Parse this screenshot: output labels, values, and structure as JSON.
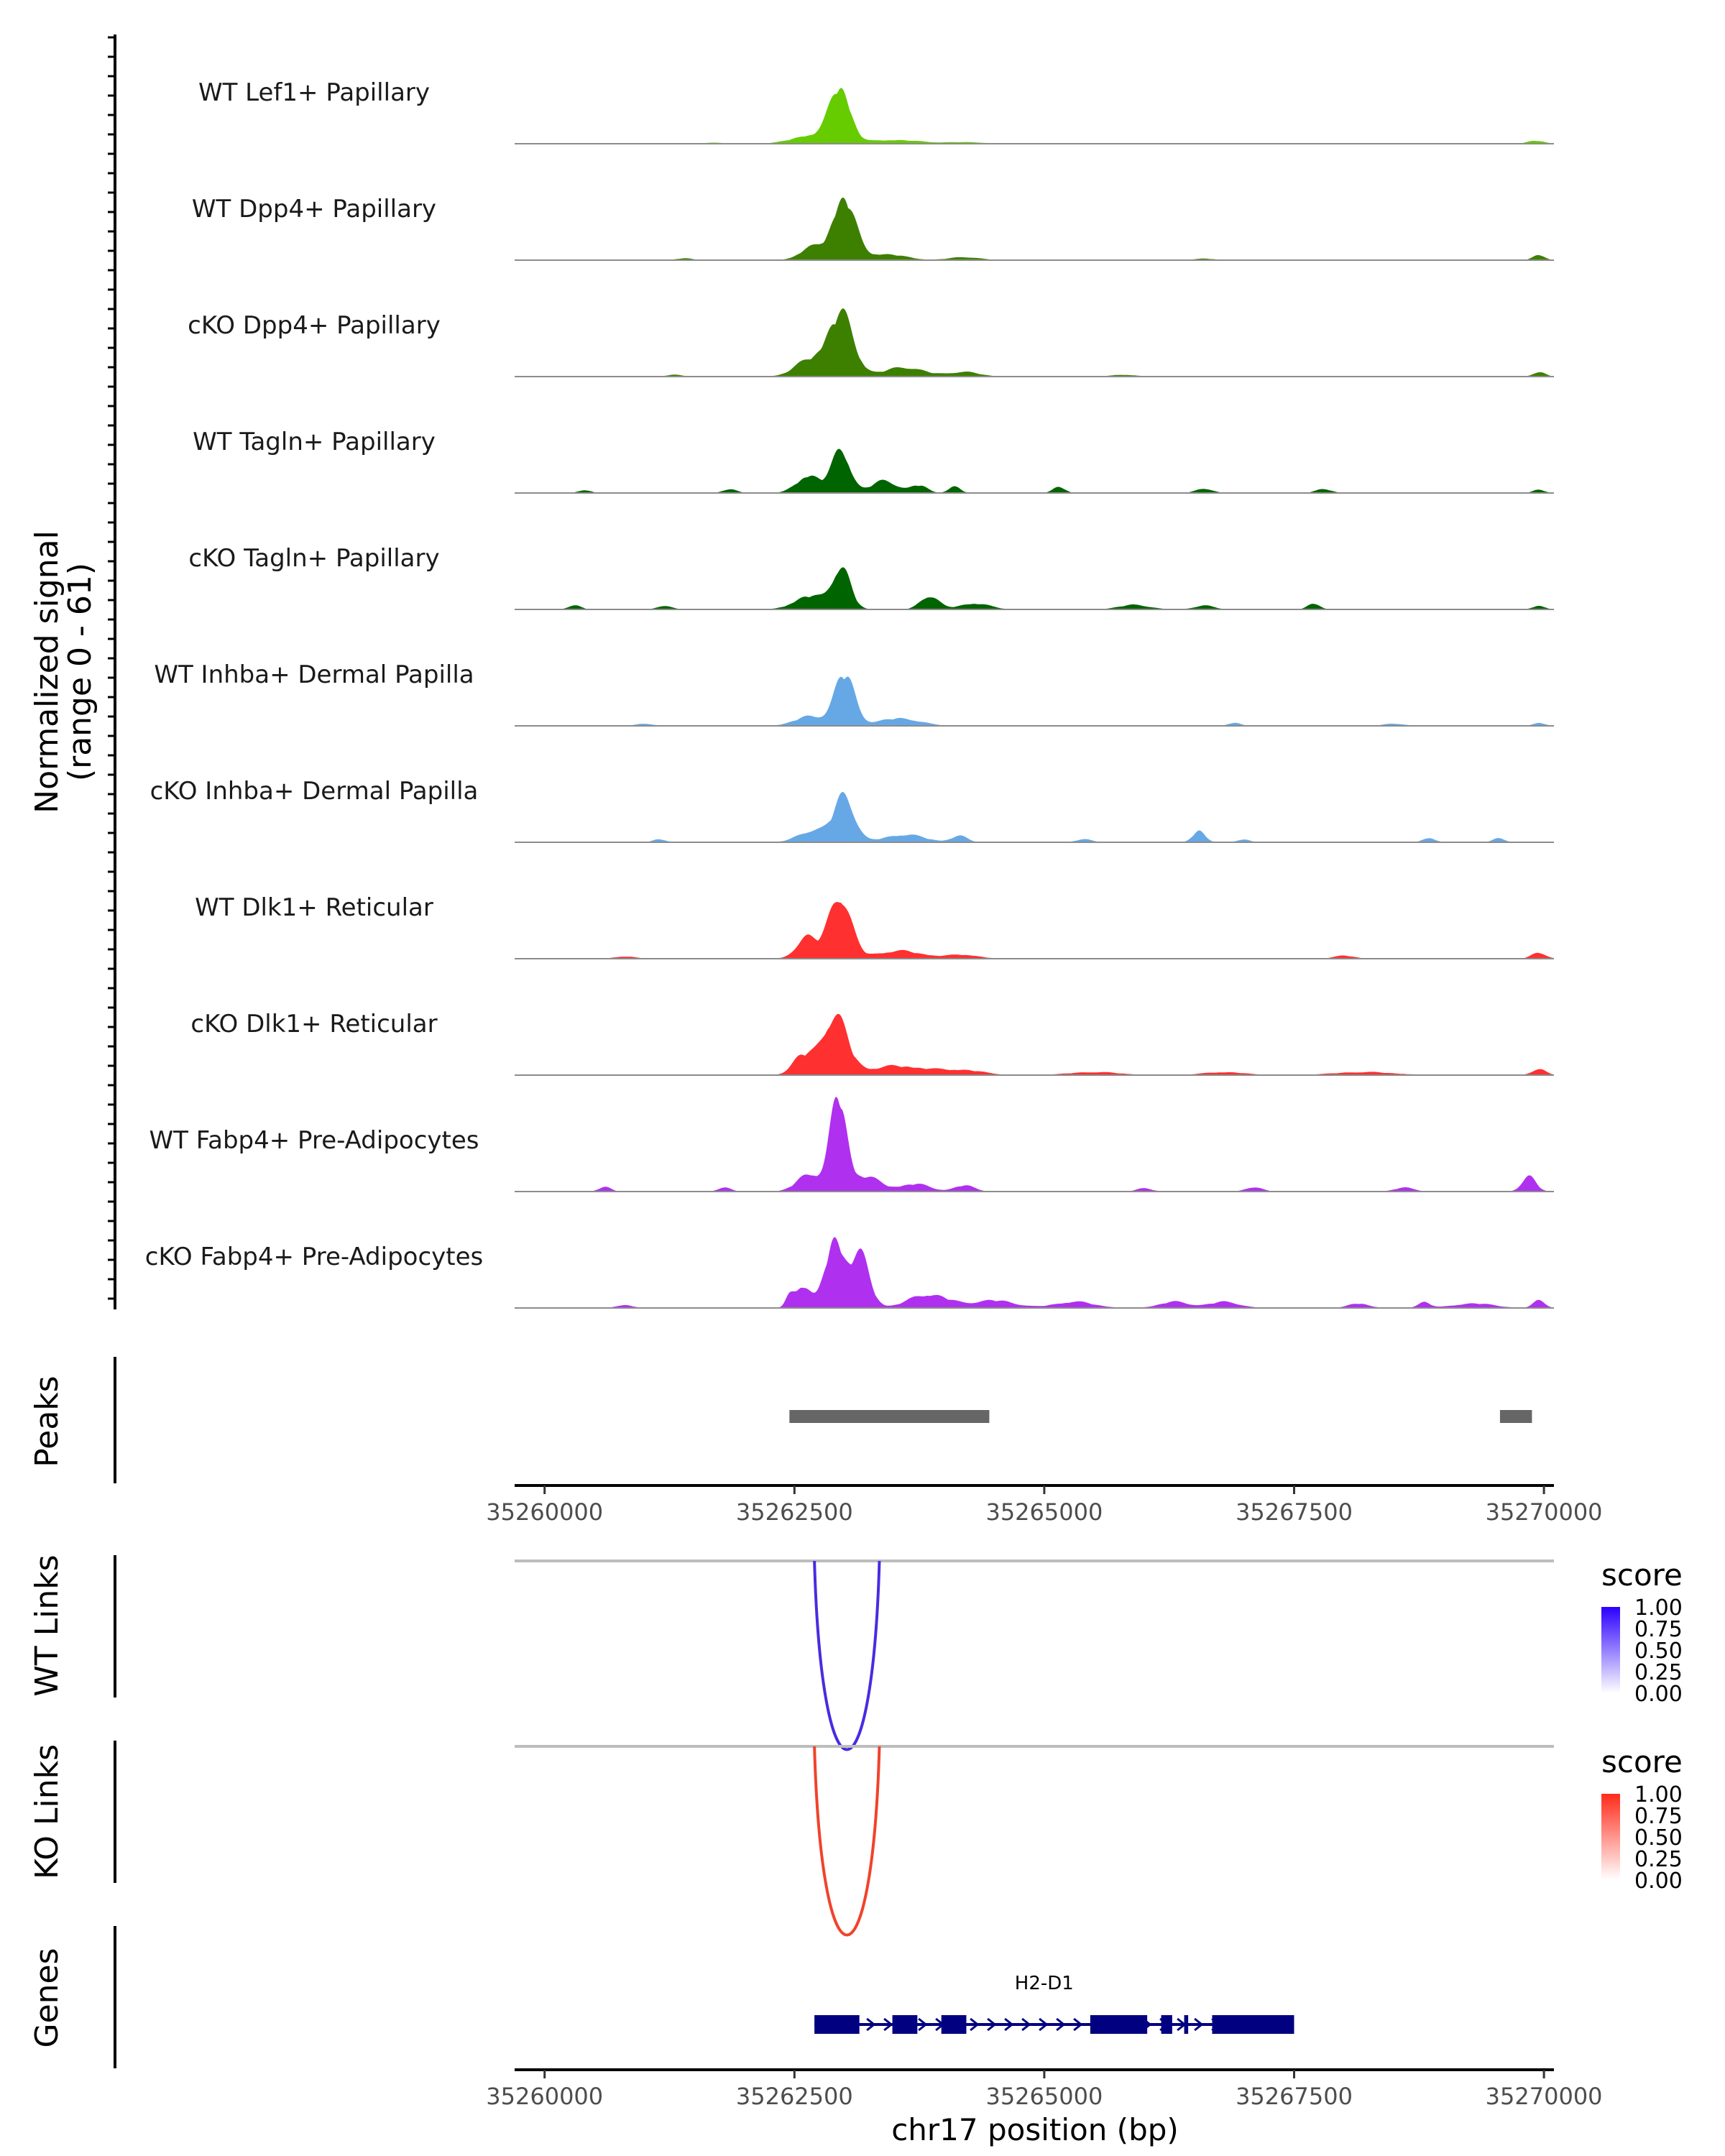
{
  "chart_data": {
    "type": "area",
    "chrom": "chr17",
    "xlim": [
      35259700,
      35270100
    ],
    "xticks": [
      35260000,
      35262500,
      35265000,
      35267500,
      35270000
    ],
    "xlabel": "chr17 position (bp)",
    "coverage": {
      "ylabel_line1": "Normalized signal",
      "ylabel_line2": "(range 0 - 61)",
      "ylim": [
        0,
        61
      ],
      "tracks": [
        {
          "name": "WT Lef1+ Papillary",
          "color": "#66CC00",
          "peaks": [
            [
              35262960,
              36,
              100
            ],
            [
              35262700,
              6,
              200
            ],
            [
              35263500,
              2.5,
              250
            ],
            [
              35264200,
              1.0,
              200
            ],
            [
              35269920,
              2.0,
              80
            ],
            [
              35261700,
              0.8,
              80
            ]
          ]
        },
        {
          "name": "WT Dpp4+ Papillary",
          "color": "#3D8000",
          "peaks": [
            [
              35262990,
              42,
              110
            ],
            [
              35262670,
              8,
              120
            ],
            [
              35263400,
              4,
              200
            ],
            [
              35264200,
              2,
              150
            ],
            [
              35261400,
              1.2,
              80
            ],
            [
              35269950,
              3.5,
              60
            ],
            [
              35266600,
              1,
              100
            ]
          ]
        },
        {
          "name": "cKO Dpp4+ Papillary",
          "color": "#3D8000",
          "peaks": [
            [
              35262960,
              40,
              130
            ],
            [
              35262650,
              10,
              150
            ],
            [
              35263600,
              6,
              200
            ],
            [
              35264200,
              3,
              150
            ],
            [
              35261300,
              1.2,
              80
            ],
            [
              35265800,
              1.2,
              120
            ],
            [
              35269950,
              3,
              60
            ]
          ]
        },
        {
          "name": "WT Tagln+ Papillary",
          "color": "#006400",
          "peaks": [
            [
              35262970,
              28,
              90
            ],
            [
              35262650,
              12,
              120
            ],
            [
              35263400,
              8,
              130
            ],
            [
              35263750,
              5,
              80
            ],
            [
              35264100,
              4,
              60
            ],
            [
              35265150,
              4,
              60
            ],
            [
              35261850,
              2.5,
              70
            ],
            [
              35260400,
              2,
              60
            ],
            [
              35266600,
              3,
              80
            ],
            [
              35267800,
              2.5,
              80
            ],
            [
              35269950,
              2,
              60
            ]
          ]
        },
        {
          "name": "cKO Tagln+ Papillary",
          "color": "#006400",
          "peaks": [
            [
              35262970,
              28,
              90
            ],
            [
              35262650,
              9,
              150
            ],
            [
              35263850,
              9,
              90
            ],
            [
              35264300,
              4,
              150
            ],
            [
              35265900,
              3,
              150
            ],
            [
              35266600,
              2.5,
              100
            ],
            [
              35261200,
              2.5,
              70
            ],
            [
              35260300,
              3,
              60
            ],
            [
              35267700,
              4,
              60
            ],
            [
              35269950,
              2.5,
              60
            ]
          ]
        },
        {
          "name": "WT Inhba+ Dermal Papilla",
          "color": "#66A8E6",
          "peaks": [
            [
              35263000,
              34,
              100
            ],
            [
              35262650,
              6,
              150
            ],
            [
              35263550,
              5,
              200
            ],
            [
              35266900,
              2,
              60
            ],
            [
              35261000,
              1.5,
              80
            ],
            [
              35268500,
              1.5,
              100
            ],
            [
              35269950,
              2,
              60
            ]
          ]
        },
        {
          "name": "cKO Inhba+ Dermal Papilla",
          "color": "#66A8E6",
          "peaks": [
            [
              35263000,
              30,
              100
            ],
            [
              35262700,
              8,
              150
            ],
            [
              35263600,
              5,
              200
            ],
            [
              35266550,
              8,
              60
            ],
            [
              35264150,
              4,
              80
            ],
            [
              35268850,
              3,
              60
            ],
            [
              35261150,
              2,
              60
            ],
            [
              35269550,
              2.5,
              60
            ],
            [
              35267000,
              2,
              60
            ],
            [
              35265400,
              2,
              80
            ]
          ]
        },
        {
          "name": "WT Dlk1+ Reticular",
          "color": "#FF3030",
          "peaks": [
            [
              35262950,
              42,
              110
            ],
            [
              35262620,
              14,
              100
            ],
            [
              35263550,
              5,
              250
            ],
            [
              35264200,
              2.5,
              150
            ],
            [
              35269950,
              4,
              70
            ],
            [
              35260800,
              1.5,
              100
            ],
            [
              35268000,
              2,
              100
            ]
          ]
        },
        {
          "name": "cKO Dlk1+ Reticular",
          "color": "#FF3030",
          "peaks": [
            [
              35262900,
              38,
              130
            ],
            [
              35262580,
              12,
              100
            ],
            [
              35263550,
              6,
              300
            ],
            [
              35264200,
              3,
              200
            ],
            [
              35265500,
              2,
              250
            ],
            [
              35266800,
              2,
              200
            ],
            [
              35268200,
              2,
              300
            ],
            [
              35269950,
              4,
              70
            ]
          ]
        },
        {
          "name": "WT Fabp4+ Pre-Adipocytes",
          "color": "#B030F0",
          "peaks": [
            [
              35262940,
              61,
              80
            ],
            [
              35262650,
              12,
              120
            ],
            [
              35263200,
              10,
              150
            ],
            [
              35263700,
              5,
              150
            ],
            [
              35264200,
              4,
              100
            ],
            [
              35269850,
              10,
              70
            ],
            [
              35260600,
              3,
              60
            ],
            [
              35261800,
              3,
              60
            ],
            [
              35267100,
              3,
              80
            ],
            [
              35268600,
              2.5,
              100
            ],
            [
              35266000,
              2,
              80
            ]
          ]
        },
        {
          "name": "cKO Fabp4+ Pre-Adipocytes",
          "color": "#B030F0",
          "peaks": [
            [
              35262900,
              46,
              90
            ],
            [
              35263150,
              34,
              100
            ],
            [
              35262580,
              15,
              80
            ],
            [
              35263850,
              9,
              200
            ],
            [
              35264500,
              5,
              200
            ],
            [
              35265300,
              4,
              200
            ],
            [
              35266300,
              4,
              150
            ],
            [
              35266800,
              4,
              150
            ],
            [
              35269300,
              3,
              200
            ],
            [
              35269950,
              5,
              60
            ],
            [
              35262450,
              6,
              40
            ],
            [
              35260800,
              2,
              80
            ],
            [
              35268150,
              3,
              100
            ],
            [
              35268800,
              4,
              60
            ]
          ]
        }
      ]
    },
    "peaks_track": {
      "label": "Peaks",
      "color": "#666666",
      "regions": [
        [
          35262450,
          35264450
        ],
        [
          35269560,
          35269880
        ]
      ]
    },
    "links": [
      {
        "label": "WT Links",
        "color": "#4A2BE0",
        "low_color": "#FFFFFF",
        "high_color": "#2B00FF",
        "start": 35262700,
        "end": 35263350,
        "score": 1.0,
        "legend_title": "score",
        "legend_ticks": [
          "1.00",
          "0.75",
          "0.50",
          "0.25",
          "0.00"
        ]
      },
      {
        "label": "KO Links",
        "color": "#F0432B",
        "low_color": "#FFFFFF",
        "high_color": "#FF2B1A",
        "start": 35262700,
        "end": 35263350,
        "score": 1.0,
        "legend_title": "score",
        "legend_ticks": [
          "1.00",
          "0.75",
          "0.50",
          "0.25",
          "0.00"
        ]
      }
    ],
    "genes": {
      "label": "Genes",
      "color": "#000080",
      "name": "H2-D1",
      "start": 35262700,
      "end": 35267500,
      "exons": [
        [
          35262700,
          35263150
        ],
        [
          35263480,
          35263730
        ],
        [
          35263970,
          35264220
        ],
        [
          35265460,
          35266030
        ],
        [
          35266170,
          35266280
        ],
        [
          35266400,
          35266440
        ],
        [
          35266680,
          35267500
        ]
      ]
    }
  }
}
